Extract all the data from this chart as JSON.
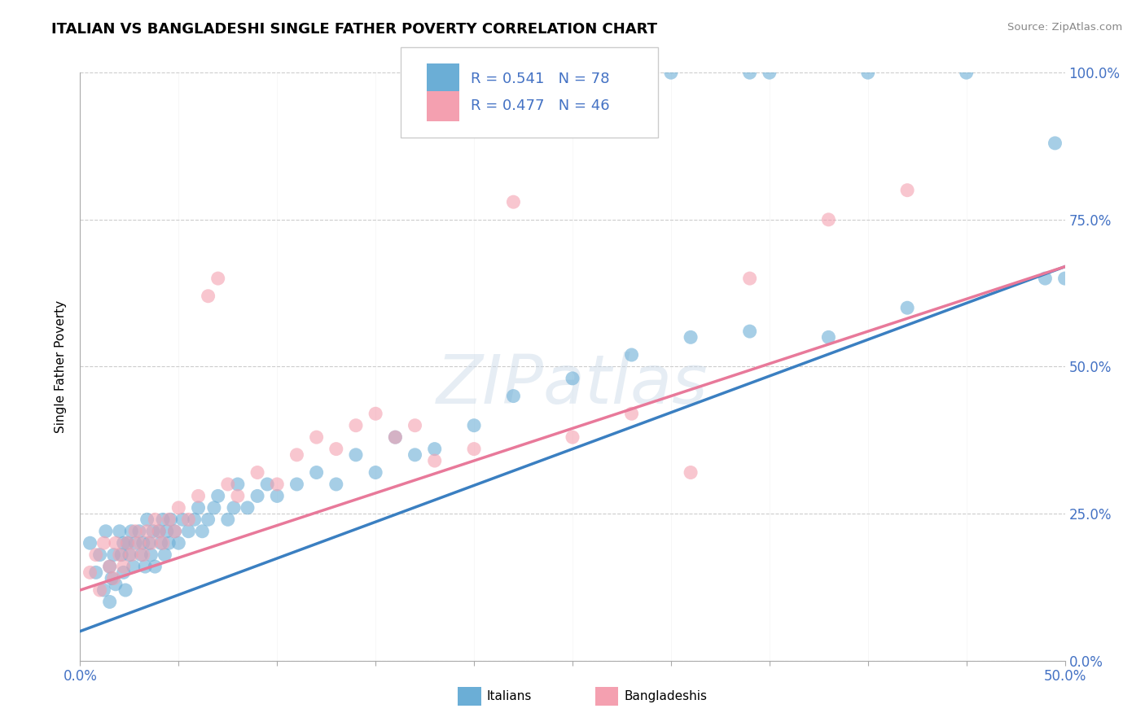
{
  "title": "ITALIAN VS BANGLADESHI SINGLE FATHER POVERTY CORRELATION CHART",
  "source": "Source: ZipAtlas.com",
  "ylabel": "Single Father Poverty",
  "yticks": [
    "0.0%",
    "25.0%",
    "50.0%",
    "75.0%",
    "100.0%"
  ],
  "ytick_vals": [
    0.0,
    0.25,
    0.5,
    0.75,
    1.0
  ],
  "xlim": [
    0.0,
    0.5
  ],
  "ylim": [
    0.0,
    1.0
  ],
  "italian_color": "#6baed6",
  "bangladeshi_color": "#f4a0b0",
  "italian_line_color": "#3a7fc1",
  "bangladeshi_line_color": "#e8799a",
  "italian_R": 0.541,
  "italian_N": 78,
  "bangladeshi_R": 0.477,
  "bangladeshi_N": 46,
  "watermark_text": "ZIPatlas",
  "italian_x": [
    0.005,
    0.008,
    0.01,
    0.012,
    0.013,
    0.015,
    0.015,
    0.016,
    0.017,
    0.018,
    0.02,
    0.021,
    0.022,
    0.022,
    0.023,
    0.024,
    0.025,
    0.026,
    0.027,
    0.028,
    0.03,
    0.031,
    0.032,
    0.033,
    0.034,
    0.035,
    0.036,
    0.037,
    0.038,
    0.04,
    0.041,
    0.042,
    0.043,
    0.044,
    0.045,
    0.046,
    0.048,
    0.05,
    0.052,
    0.055,
    0.058,
    0.06,
    0.062,
    0.065,
    0.068,
    0.07,
    0.075,
    0.078,
    0.08,
    0.085,
    0.09,
    0.095,
    0.1,
    0.11,
    0.12,
    0.13,
    0.14,
    0.15,
    0.16,
    0.17,
    0.18,
    0.2,
    0.22,
    0.25,
    0.28,
    0.31,
    0.34,
    0.38,
    0.42,
    0.34,
    0.28,
    0.3,
    0.35,
    0.4,
    0.45,
    0.49,
    0.495,
    0.5
  ],
  "italian_y": [
    0.2,
    0.15,
    0.18,
    0.12,
    0.22,
    0.1,
    0.16,
    0.14,
    0.18,
    0.13,
    0.22,
    0.18,
    0.2,
    0.15,
    0.12,
    0.2,
    0.18,
    0.22,
    0.16,
    0.2,
    0.22,
    0.18,
    0.2,
    0.16,
    0.24,
    0.2,
    0.18,
    0.22,
    0.16,
    0.22,
    0.2,
    0.24,
    0.18,
    0.22,
    0.2,
    0.24,
    0.22,
    0.2,
    0.24,
    0.22,
    0.24,
    0.26,
    0.22,
    0.24,
    0.26,
    0.28,
    0.24,
    0.26,
    0.3,
    0.26,
    0.28,
    0.3,
    0.28,
    0.3,
    0.32,
    0.3,
    0.35,
    0.32,
    0.38,
    0.35,
    0.36,
    0.4,
    0.45,
    0.48,
    0.52,
    0.55,
    0.56,
    0.55,
    0.6,
    1.0,
    1.0,
    1.0,
    1.0,
    1.0,
    1.0,
    0.65,
    0.88,
    0.65
  ],
  "bangladeshi_x": [
    0.005,
    0.008,
    0.01,
    0.012,
    0.015,
    0.017,
    0.018,
    0.02,
    0.022,
    0.024,
    0.026,
    0.028,
    0.03,
    0.032,
    0.034,
    0.036,
    0.038,
    0.04,
    0.042,
    0.045,
    0.048,
    0.05,
    0.055,
    0.06,
    0.065,
    0.07,
    0.075,
    0.08,
    0.09,
    0.1,
    0.11,
    0.12,
    0.13,
    0.14,
    0.15,
    0.16,
    0.17,
    0.18,
    0.2,
    0.22,
    0.25,
    0.28,
    0.31,
    0.34,
    0.38,
    0.42
  ],
  "bangladeshi_y": [
    0.15,
    0.18,
    0.12,
    0.2,
    0.16,
    0.14,
    0.2,
    0.18,
    0.16,
    0.2,
    0.18,
    0.22,
    0.2,
    0.18,
    0.22,
    0.2,
    0.24,
    0.22,
    0.2,
    0.24,
    0.22,
    0.26,
    0.24,
    0.28,
    0.62,
    0.65,
    0.3,
    0.28,
    0.32,
    0.3,
    0.35,
    0.38,
    0.36,
    0.4,
    0.42,
    0.38,
    0.4,
    0.34,
    0.36,
    0.78,
    0.38,
    0.42,
    0.32,
    0.65,
    0.75,
    0.8
  ],
  "italian_line_x0": 0.0,
  "italian_line_y0": 0.05,
  "italian_line_x1": 0.5,
  "italian_line_y1": 0.67,
  "bangladeshi_line_x0": 0.0,
  "bangladeshi_line_y0": 0.12,
  "bangladeshi_line_x1": 0.5,
  "bangladeshi_line_y1": 0.67
}
